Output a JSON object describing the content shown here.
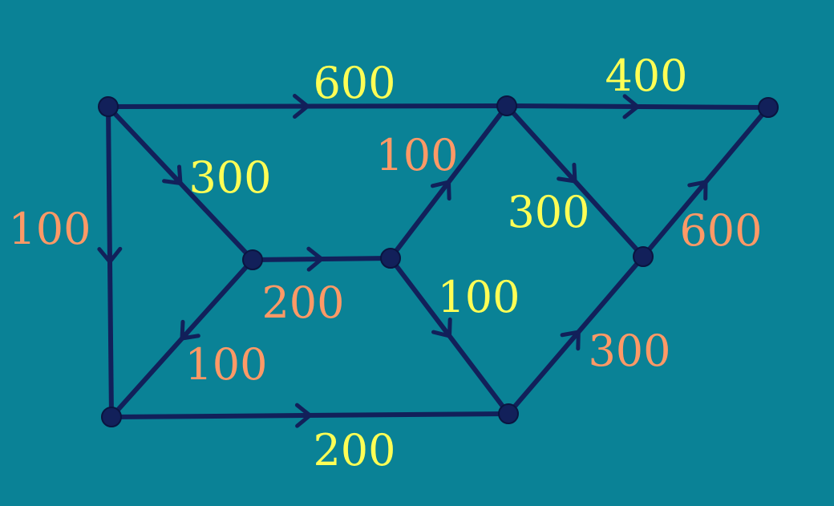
{
  "colors": {
    "background": "#0a8296",
    "edge": "#12205a",
    "weight_yellow": "#ffff55",
    "weight_orange": "#ff9966"
  },
  "nodes": [
    {
      "id": "A"
    },
    {
      "id": "B"
    },
    {
      "id": "C"
    },
    {
      "id": "D"
    },
    {
      "id": "E"
    },
    {
      "id": "F"
    },
    {
      "id": "G"
    },
    {
      "id": "H"
    }
  ],
  "edges": [
    {
      "from": "A",
      "to": "B",
      "weight": "600",
      "color": "yellow"
    },
    {
      "from": "B",
      "to": "C",
      "weight": "400",
      "color": "yellow"
    },
    {
      "from": "A",
      "to": "D",
      "weight": "300",
      "color": "yellow"
    },
    {
      "from": "A",
      "to": "F",
      "weight": "100",
      "color": "orange"
    },
    {
      "from": "D",
      "to": "E",
      "weight": "200",
      "color": "orange"
    },
    {
      "from": "E",
      "to": "B",
      "weight": "100",
      "color": "orange"
    },
    {
      "from": "B",
      "to": "H",
      "weight": "300",
      "color": "yellow"
    },
    {
      "from": "H",
      "to": "C",
      "weight": "600",
      "color": "orange"
    },
    {
      "from": "D",
      "to": "F",
      "weight": "100",
      "color": "orange"
    },
    {
      "from": "E",
      "to": "G",
      "weight": "100",
      "color": "yellow"
    },
    {
      "from": "F",
      "to": "G",
      "weight": "200",
      "color": "yellow"
    },
    {
      "from": "G",
      "to": "H",
      "weight": "300",
      "color": "orange"
    }
  ]
}
